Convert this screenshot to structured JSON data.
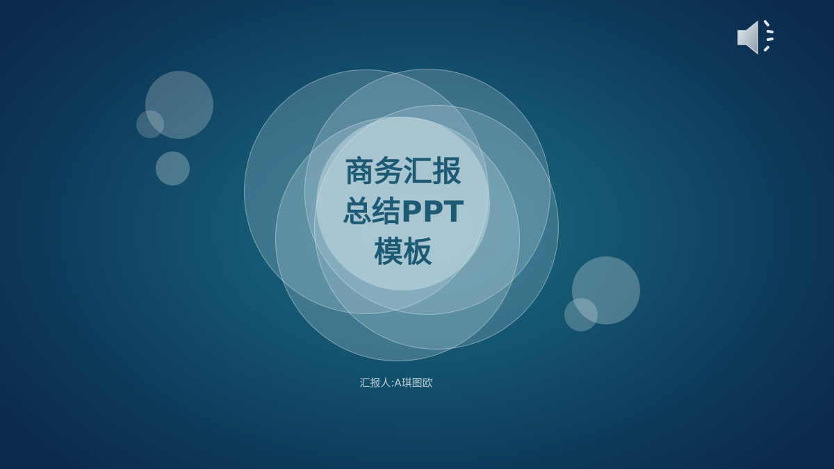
{
  "slide": {
    "title_lines": [
      "商务汇报",
      "总结PPT",
      "模板"
    ],
    "presenter": "汇报人:A琪图欧"
  },
  "controls": {
    "audio_icon": "speaker-icon"
  },
  "colors": {
    "background_center": "#1a6a82",
    "background_edge": "#0b2b4c",
    "title_text": "#1e5a74",
    "bubble": "#ffffff"
  }
}
